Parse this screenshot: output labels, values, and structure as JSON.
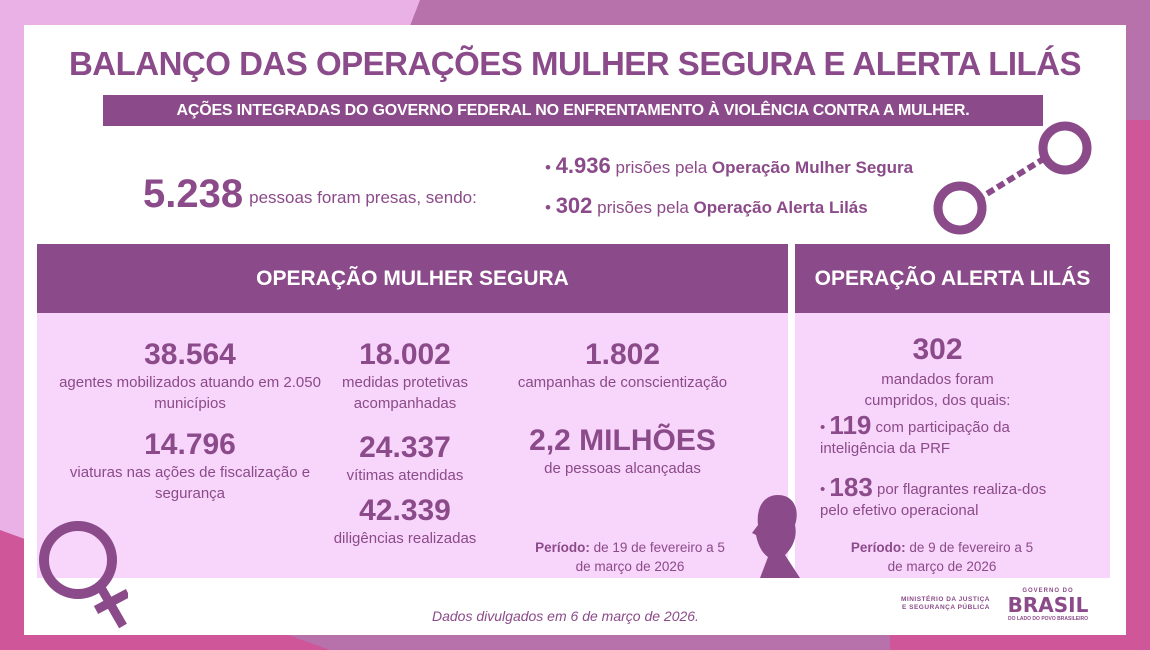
{
  "title": "BALANÇO DAS OPERAÇÕES MULHER SEGURA E ALERTA LILÁS",
  "subtitle": "AÇÕES INTEGRADAS DO GOVERNO FEDERAL NO ENFRENTAMENTO À VIOLÊNCIA CONTRA A MULHER.",
  "summary": {
    "total": "5.238",
    "total_text": "pessoas foram presas, sendo:",
    "items": [
      {
        "num": "4.936",
        "text": "prisões pela",
        "op": "Operação Mulher Segura"
      },
      {
        "num": "302",
        "text": "prisões pela",
        "op": "Operação Alerta Lilás"
      }
    ]
  },
  "mulher_segura": {
    "header": "OPERAÇÃO MULHER SEGURA",
    "stats": [
      {
        "num": "38.564",
        "label": "agentes mobilizados atuando em 2.050 municípios"
      },
      {
        "num": "14.796",
        "label": "viaturas nas ações de fiscalização e segurança"
      },
      {
        "num": "18.002",
        "label": "medidas protetivas acompanhadas"
      },
      {
        "num": "24.337",
        "label": "vítimas atendidas"
      },
      {
        "num": "42.339",
        "label": "diligências realizadas"
      },
      {
        "num": "1.802",
        "label": "campanhas de conscientização"
      },
      {
        "num": "2,2 MILHÕES",
        "label": "de pessoas alcançadas"
      }
    ],
    "period_label": "Período:",
    "period": "de 19 de fevereiro a 5 de março de 2026"
  },
  "alerta_lilas": {
    "header": "OPERAÇÃO ALERTA LILÁS",
    "num": "302",
    "label": "mandados foram cumpridos, dos quais:",
    "items": [
      {
        "num": "119",
        "text": "com participação da inteligência da PRF"
      },
      {
        "num": "183",
        "text": "por flagrantes realiza-dos pelo efetivo operacional"
      }
    ],
    "period_label": "Período:",
    "period": "de 9 de fevereiro a 5 de março de 2026"
  },
  "footer": "Dados divulgados em 6 de março de 2026.",
  "logos": {
    "ministry": "MINISTÉRIO DA JUSTIÇA E SEGURANÇA PÚBLICA",
    "gov_top": "GOVERNO DO",
    "gov_main": "BRASIL",
    "gov_tag": "DO LADO DO POVO BRASILEIRO"
  },
  "colors": {
    "purple": "#8b4a89",
    "panel": "#f8d6fb",
    "magenta": "#cf5699"
  }
}
